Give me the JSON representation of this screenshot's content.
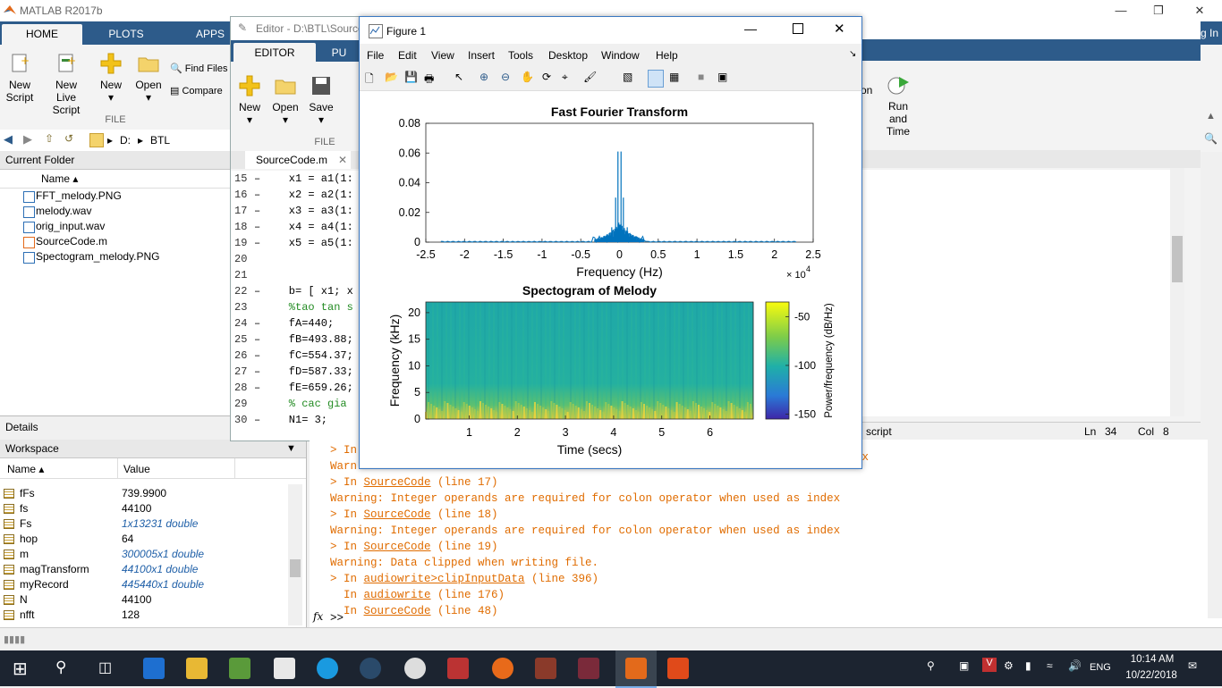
{
  "matlab": {
    "title": "MATLAB R2017b",
    "tabs": [
      "HOME",
      "PLOTS",
      "APPS"
    ],
    "home_buttons": [
      "New Script",
      "New Live Script",
      "New",
      "Open"
    ],
    "find_files": "Find Files",
    "compare": "Compare",
    "file_section": "FILE",
    "address": [
      "D:",
      "BTL"
    ],
    "partial_title": "g In"
  },
  "current_folder": {
    "header": "Current Folder",
    "col_name": "Name ▴",
    "files": [
      "FFT_melody.PNG",
      "melody.wav",
      "orig_input.wav",
      "SourceCode.m",
      "Spectogram_melody.PNG"
    ]
  },
  "details": {
    "label": "Details"
  },
  "workspace": {
    "header": "Workspace",
    "col_name": "Name ▴",
    "col_value": "Value",
    "rows": [
      {
        "name": "fFs",
        "value": "739.9900",
        "italic": false
      },
      {
        "name": "fs",
        "value": "44100",
        "italic": false
      },
      {
        "name": "Fs",
        "value": "1x13231 double",
        "italic": true
      },
      {
        "name": "hop",
        "value": "64",
        "italic": false
      },
      {
        "name": "m",
        "value": "300005x1 double",
        "italic": true
      },
      {
        "name": "magTransform",
        "value": "44100x1 double",
        "italic": true
      },
      {
        "name": "myRecord",
        "value": "445440x1 double",
        "italic": true
      },
      {
        "name": "N",
        "value": "44100",
        "italic": false
      },
      {
        "name": "nfft",
        "value": "128",
        "italic": false
      }
    ]
  },
  "editor": {
    "title": "Editor - D:\\BTL\\Source",
    "tabs": [
      "EDITOR",
      "PU"
    ],
    "buttons": [
      "New",
      "Open",
      "Save"
    ],
    "file_section": "FILE",
    "doc_tab": "SourceCode.m",
    "lines": [
      {
        "n": "15",
        "dash": "–",
        "code": "    x1 = a1(1:",
        "comment": false
      },
      {
        "n": "16",
        "dash": "–",
        "code": "    x2 = a2(1:",
        "comment": false
      },
      {
        "n": "17",
        "dash": "–",
        "code": "    x3 = a3(1:",
        "comment": false
      },
      {
        "n": "18",
        "dash": "–",
        "code": "    x4 = a4(1:",
        "comment": false
      },
      {
        "n": "19",
        "dash": "–",
        "code": "    x5 = a5(1:",
        "comment": false
      },
      {
        "n": "20",
        "dash": "",
        "code": "",
        "comment": false
      },
      {
        "n": "21",
        "dash": "",
        "code": "",
        "comment": false
      },
      {
        "n": "22",
        "dash": "–",
        "code": "    b= [ x1; x",
        "comment": false
      },
      {
        "n": "23",
        "dash": "",
        "code": "    %tao tan s",
        "comment": true
      },
      {
        "n": "24",
        "dash": "–",
        "code": "    fA=440;",
        "comment": false
      },
      {
        "n": "25",
        "dash": "–",
        "code": "    fB=493.88;",
        "comment": false
      },
      {
        "n": "26",
        "dash": "–",
        "code": "    fC=554.37;",
        "comment": false
      },
      {
        "n": "27",
        "dash": "–",
        "code": "    fD=587.33;",
        "comment": false
      },
      {
        "n": "28",
        "dash": "–",
        "code": "    fE=659.26;",
        "comment": false
      },
      {
        "n": "29",
        "dash": "",
        "code": "    % cac gia",
        "comment": true
      },
      {
        "n": "30",
        "dash": "–",
        "code": "    N1= 3;",
        "comment": false
      }
    ],
    "run_time": "Run and Time",
    "status_script": "script",
    "status_ln_label": "Ln",
    "status_ln": "34",
    "status_col_label": "Col",
    "status_col": "8",
    "partial_on": "on"
  },
  "command_window": {
    "lines": [
      {
        "top": "> In",
        "link": "",
        "rest": ""
      },
      {
        "top": "Warn",
        "link": "",
        "rest": ""
      },
      {
        "top": "> In ",
        "link": "SourceCode",
        "rest": " (line 17)"
      },
      {
        "top": "Warning: Integer operands are required for colon operator when used as index",
        "link": "",
        "rest": ""
      },
      {
        "top": "> In ",
        "link": "SourceCode",
        "rest": " (line 18)"
      },
      {
        "top": "Warning: Integer operands are required for colon operator when used as index",
        "link": "",
        "rest": ""
      },
      {
        "top": "> In ",
        "link": "SourceCode",
        "rest": " (line 19)"
      },
      {
        "top": "Warning: Data clipped when writing file.",
        "link": "",
        "rest": ""
      },
      {
        "top": "> In ",
        "link": "audiowrite>clipInputData",
        "rest": " (line 396)"
      },
      {
        "top": "  In ",
        "link": "audiowrite",
        "rest": " (line 176)"
      },
      {
        "top": "  In ",
        "link": "SourceCode",
        "rest": " (line 48)"
      }
    ],
    "partial_ex": "ex",
    "prompt": ">>",
    "fx": "fx"
  },
  "figure": {
    "title": "Figure 1",
    "menu": [
      "File",
      "Edit",
      "View",
      "Insert",
      "Tools",
      "Desktop",
      "Window",
      "Help"
    ]
  },
  "chart_data": [
    {
      "type": "line",
      "title": "Fast Fourier Transform",
      "xlabel": "Frequency (Hz)",
      "ylabel": "",
      "x_multiplier": "× 10",
      "x_exponent": "4",
      "xlim": [
        -2.5,
        2.5
      ],
      "ylim": [
        0,
        0.08
      ],
      "xticks": [
        "-2.5",
        "-2",
        "-1.5",
        "-1",
        "-0.5",
        "0",
        "0.5",
        "1",
        "1.5",
        "2",
        "2.5"
      ],
      "yticks": [
        "0",
        "0.02",
        "0.04",
        "0.06",
        "0.08"
      ],
      "series": [
        {
          "color": "#0072bd",
          "x": [
            -0.3,
            -0.1,
            -0.05,
            -0.02,
            0,
            0.02,
            0.05,
            0.1,
            0.3
          ],
          "values": [
            0.002,
            0.01,
            0.03,
            0.061,
            0.002,
            0.061,
            0.03,
            0.01,
            0.002
          ]
        }
      ]
    },
    {
      "type": "heatmap",
      "title": "Spectogram of Melody",
      "xlabel": "Time (secs)",
      "ylabel": "Frequency (kHz)",
      "xticks": [
        "1",
        "2",
        "3",
        "4",
        "5",
        "6"
      ],
      "yticks": [
        "0",
        "5",
        "10",
        "15",
        "20"
      ],
      "xlim": [
        0.1,
        6.9
      ],
      "ylim": [
        0,
        22
      ],
      "colorbar_label": "Power/frequency (dB/Hz)",
      "colorbar_ticks": [
        "-50",
        "-100",
        "-150"
      ],
      "colorbar_range": [
        -155,
        -35
      ]
    }
  ],
  "taskbar": {
    "time": "10:14 AM",
    "date": "10/22/2018",
    "lang": "ENG"
  }
}
